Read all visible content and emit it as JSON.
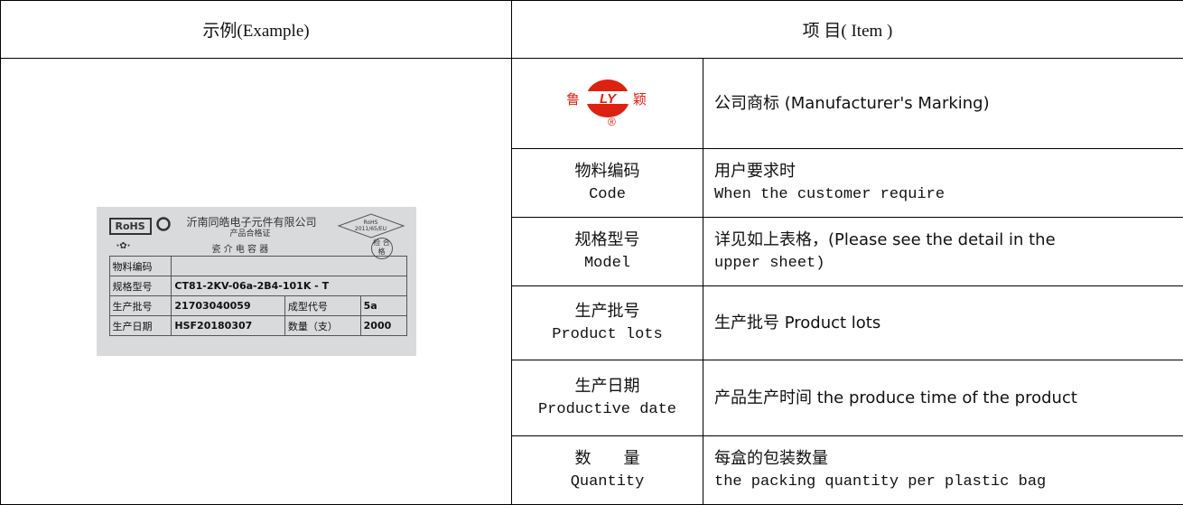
{
  "header": {
    "example": "示例(Example)",
    "item": "项 目( Item )"
  },
  "logo": {
    "left": "鲁",
    "mark": "LY",
    "right": "颖",
    "reg": "®"
  },
  "rows": [
    {
      "desc": [
        "公司商标  (Manufacturer's Marking)"
      ]
    },
    {
      "name_cn": "物料编码",
      "name_en": "Code",
      "desc": [
        "用户要求时",
        "When the customer require"
      ]
    },
    {
      "name_cn": "规格型号",
      "name_en": "Model",
      "desc": [
        "详见如上表格，(Please see the detail in the",
        "upper sheet)"
      ]
    },
    {
      "name_cn": "生产批号",
      "name_en": "Product lots",
      "desc": [
        "生产批号 Product lots"
      ]
    },
    {
      "name_cn": "生产日期",
      "name_en": "Productive date",
      "desc": [
        "产品生产时间 the produce time of the product"
      ]
    },
    {
      "name_cn": "数　　量",
      "name_en": "Quantity",
      "desc": [
        "每盒的包装数量",
        "the packing quantity per plastic bag"
      ]
    }
  ],
  "label": {
    "rohs": "RoHS",
    "company": "沂南同皓电子元件有限公司",
    "certificate": "产品合格证",
    "product": "瓷 介 电 容 器",
    "diamond": "RoHS 2011/65/EU",
    "stamp": "检 合格",
    "rows": [
      [
        "物料编码",
        ""
      ],
      [
        "规格型号",
        "CT81-2KV-06a-2B4-101K - T"
      ],
      [
        "生产批号",
        "21703040059",
        "成型代号",
        "5a"
      ],
      [
        "生产日期",
        "HSF20180307",
        "数量（支）",
        "2000"
      ]
    ]
  }
}
